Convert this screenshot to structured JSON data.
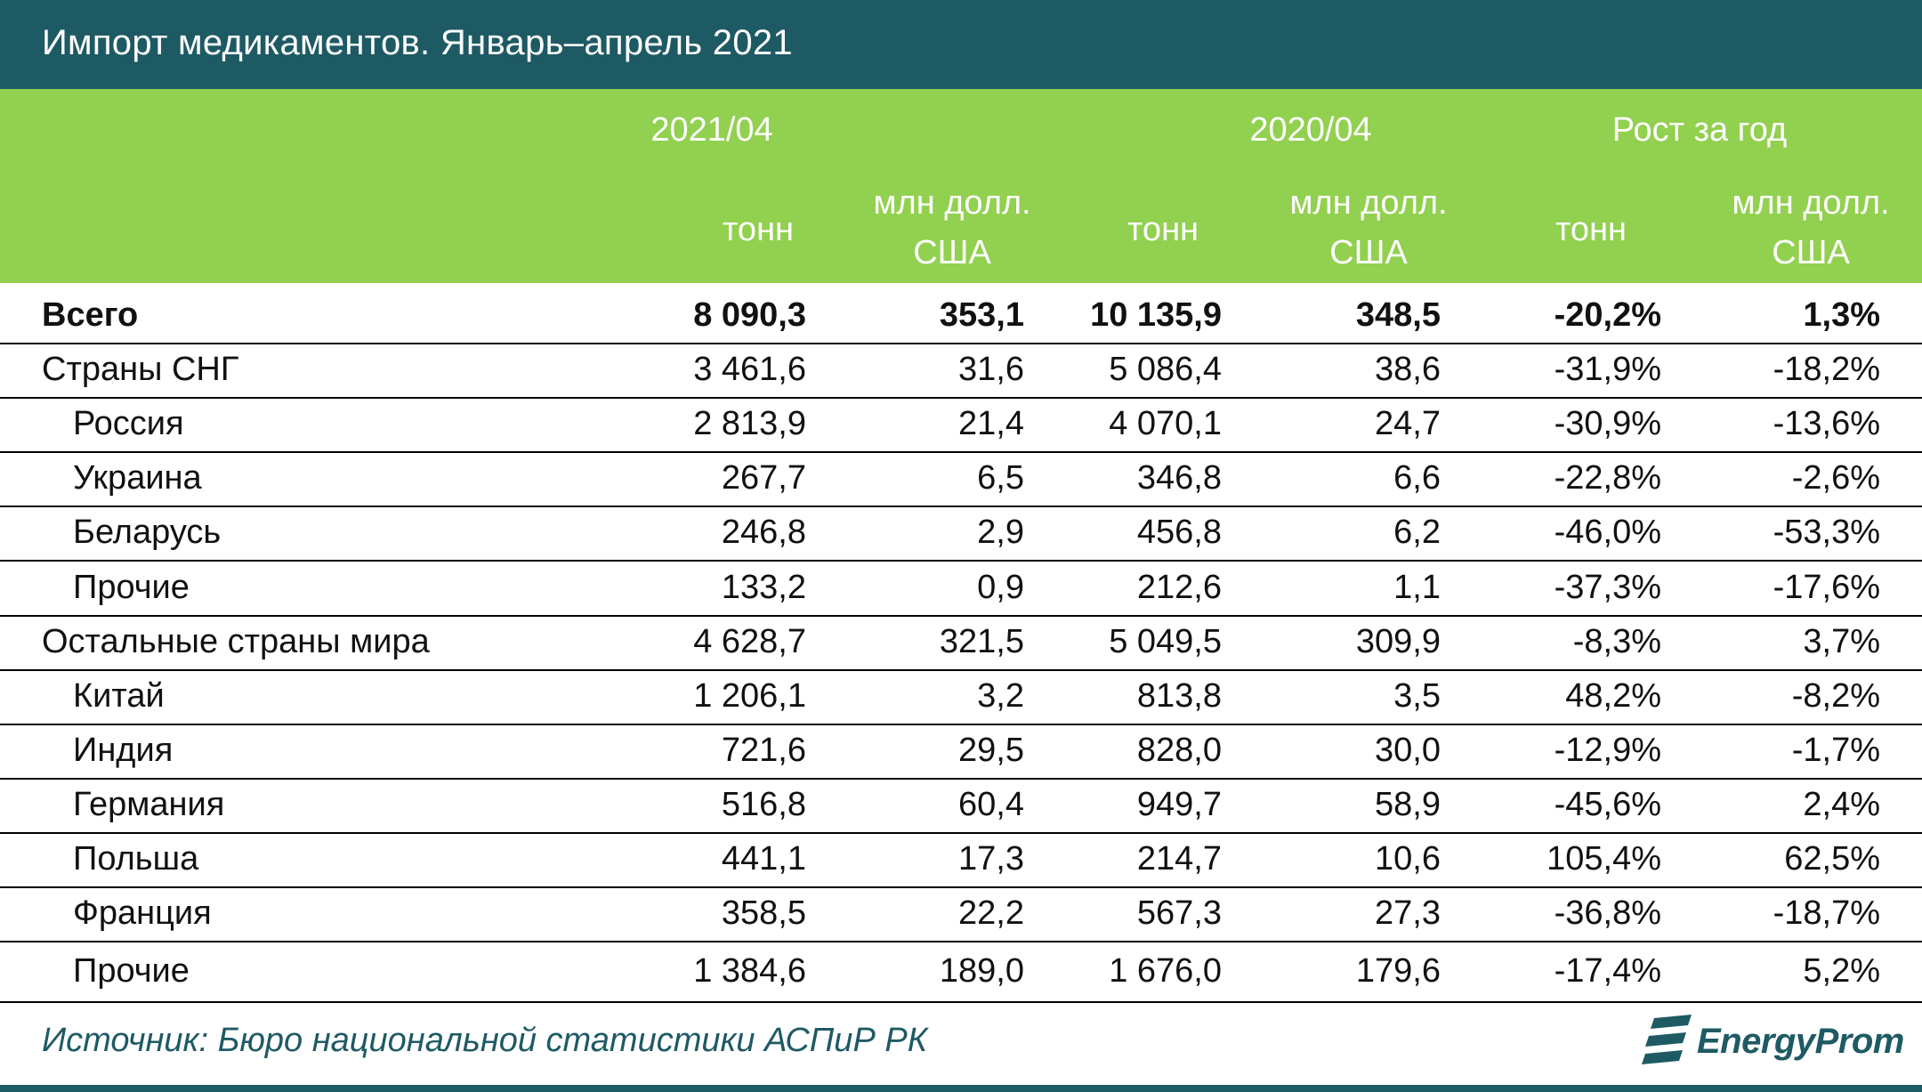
{
  "title": "Импорт медикаментов. Январь–апрель 2021",
  "colors": {
    "title_bar": "#1e5a64",
    "header": "#92d050",
    "header_text": "#ffffff",
    "source_text": "#1e5a64"
  },
  "chart_data": {
    "type": "table",
    "title": "Импорт медикаментов. Январь–апрель 2021",
    "column_groups": [
      {
        "label": "2021/04",
        "units": [
          "тонн",
          "млн долл. США"
        ]
      },
      {
        "label": "2020/04",
        "units": [
          "тонн",
          "млн долл. США"
        ]
      },
      {
        "label": "Рост за год",
        "units": [
          "тонн",
          "млн долл. США"
        ]
      }
    ],
    "rows": [
      {
        "name": "Всего",
        "level": 0,
        "bold": true,
        "values": [
          "8 090,3",
          "353,1",
          "10 135,9",
          "348,5",
          "-20,2%",
          "1,3%"
        ]
      },
      {
        "name": "Страны СНГ",
        "level": 0,
        "bold": false,
        "values": [
          "3 461,6",
          "31,6",
          "5 086,4",
          "38,6",
          "-31,9%",
          "-18,2%"
        ]
      },
      {
        "name": "Россия",
        "level": 1,
        "bold": false,
        "values": [
          "2 813,9",
          "21,4",
          "4 070,1",
          "24,7",
          "-30,9%",
          "-13,6%"
        ]
      },
      {
        "name": "Украина",
        "level": 1,
        "bold": false,
        "values": [
          "267,7",
          "6,5",
          "346,8",
          "6,6",
          "-22,8%",
          "-2,6%"
        ]
      },
      {
        "name": "Беларусь",
        "level": 1,
        "bold": false,
        "values": [
          "246,8",
          "2,9",
          "456,8",
          "6,2",
          "-46,0%",
          "-53,3%"
        ]
      },
      {
        "name": "Прочие",
        "level": 1,
        "bold": false,
        "values": [
          "133,2",
          "0,9",
          "212,6",
          "1,1",
          "-37,3%",
          "-17,6%"
        ]
      },
      {
        "name": "Остальные страны мира",
        "level": 0,
        "bold": false,
        "values": [
          "4 628,7",
          "321,5",
          "5 049,5",
          "309,9",
          "-8,3%",
          "3,7%"
        ]
      },
      {
        "name": "Китай",
        "level": 1,
        "bold": false,
        "values": [
          "1 206,1",
          "3,2",
          "813,8",
          "3,5",
          "48,2%",
          "-8,2%"
        ]
      },
      {
        "name": "Индия",
        "level": 1,
        "bold": false,
        "values": [
          "721,6",
          "29,5",
          "828,0",
          "30,0",
          "-12,9%",
          "-1,7%"
        ]
      },
      {
        "name": "Германия",
        "level": 1,
        "bold": false,
        "values": [
          "516,8",
          "60,4",
          "949,7",
          "58,9",
          "-45,6%",
          "2,4%"
        ]
      },
      {
        "name": "Польша",
        "level": 1,
        "bold": false,
        "values": [
          "441,1",
          "17,3",
          "214,7",
          "10,6",
          "105,4%",
          "62,5%"
        ]
      },
      {
        "name": "Франция",
        "level": 1,
        "bold": false,
        "values": [
          "358,5",
          "22,2",
          "567,3",
          "27,3",
          "-36,8%",
          "-18,7%"
        ]
      },
      {
        "name": "Прочие",
        "level": 1,
        "bold": false,
        "values": [
          "1 384,6",
          "189,0",
          "1 676,0",
          "179,6",
          "-17,4%",
          "5,2%"
        ]
      }
    ]
  },
  "source": "Источник: Бюро национальной статистики АСПиР РК",
  "logo": {
    "text": "EnergyProm",
    "icon": "energyprom-logo-icon"
  }
}
